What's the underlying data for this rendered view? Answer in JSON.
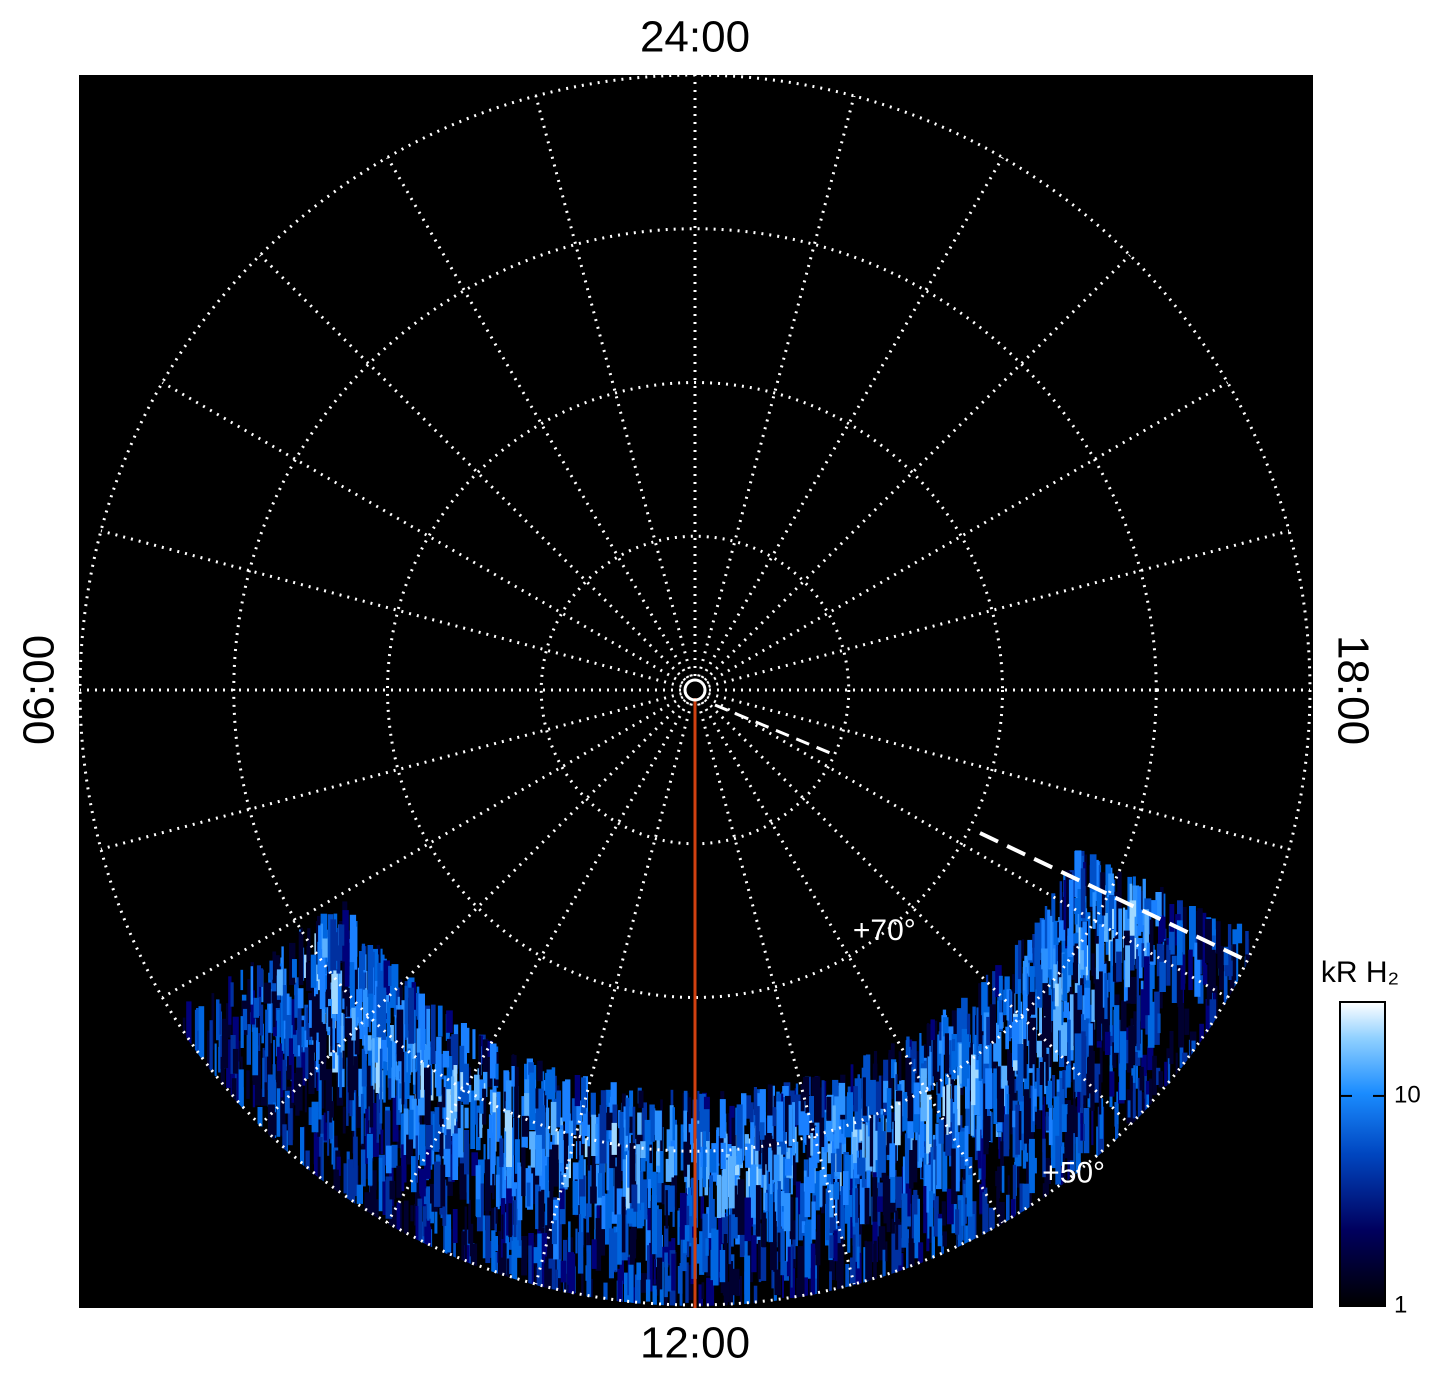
{
  "chart_data": {
    "type": "polar",
    "time_labels": {
      "top": "24:00",
      "right": "18:00",
      "bottom": "12:00",
      "left": "06:00"
    },
    "rlim": [
      90,
      50
    ],
    "rticks": [
      {
        "value": 80,
        "label": null
      },
      {
        "value": 70,
        "label": "+70°"
      },
      {
        "value": 60,
        "label": null
      },
      {
        "value": 50,
        "label": "+50°"
      }
    ],
    "colorbar": {
      "label": "kR H₂",
      "scale": "log",
      "ylim": [
        1,
        28
      ],
      "yticks": [
        1,
        10
      ]
    }
  }
}
